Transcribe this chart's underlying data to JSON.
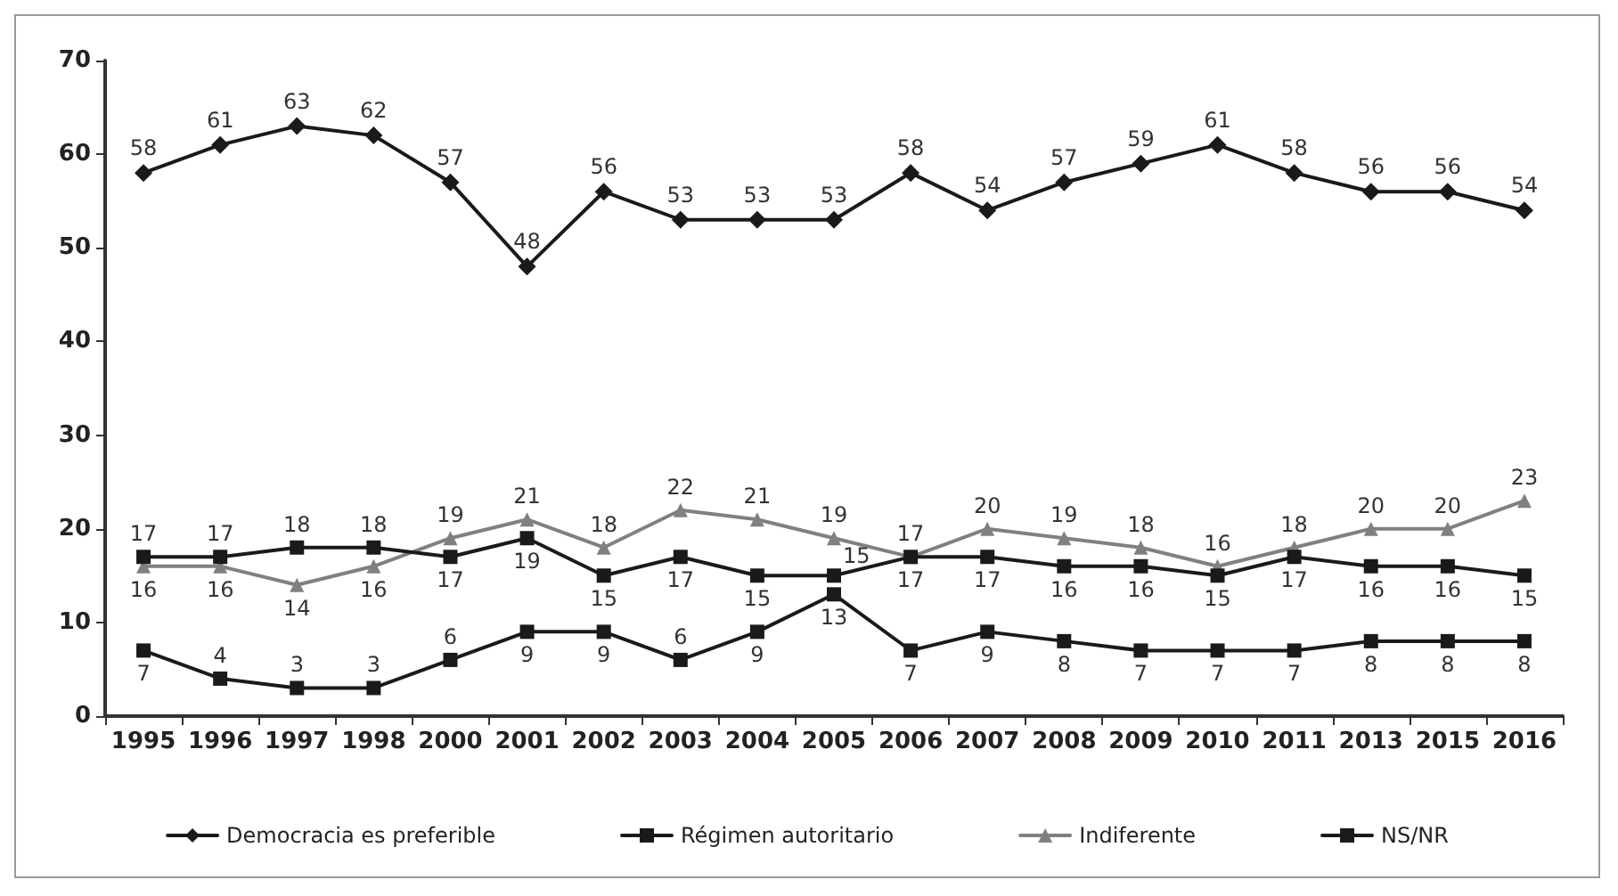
{
  "chart_data": {
    "type": "line",
    "categories": [
      "1995",
      "1996",
      "1997",
      "1998",
      "2000",
      "2001",
      "2002",
      "2003",
      "2004",
      "2005",
      "2006",
      "2007",
      "2008",
      "2009",
      "2010",
      "2011",
      "2013",
      "2015",
      "2016"
    ],
    "series": [
      {
        "name": "Democracia es preferible",
        "color": "#1a1a1a",
        "marker": "diamond",
        "values": [
          58,
          61,
          63,
          62,
          57,
          48,
          56,
          53,
          53,
          53,
          58,
          54,
          57,
          59,
          61,
          58,
          56,
          56,
          54
        ]
      },
      {
        "name": "Régimen autoritario",
        "color": "#1a1a1a",
        "marker": "square",
        "values": [
          17,
          17,
          18,
          18,
          17,
          19,
          15,
          17,
          15,
          15,
          17,
          17,
          16,
          16,
          15,
          17,
          16,
          16,
          15
        ]
      },
      {
        "name": "Indiferente",
        "color": "#808080",
        "marker": "triangle",
        "values": [
          16,
          16,
          14,
          16,
          19,
          21,
          18,
          22,
          21,
          19,
          17,
          20,
          19,
          18,
          16,
          18,
          20,
          20,
          23
        ]
      },
      {
        "name": "NS/NR",
        "color": "#1a1a1a",
        "marker": "square",
        "values": [
          7,
          4,
          3,
          3,
          6,
          9,
          9,
          6,
          9,
          13,
          7,
          9,
          8,
          7,
          7,
          7,
          8,
          8,
          8
        ]
      }
    ],
    "ylim": [
      0,
      70
    ],
    "yticks": [
      0,
      10,
      20,
      30,
      40,
      50,
      60,
      70
    ],
    "grid": false,
    "legend": "bottom",
    "data_labels": true,
    "line_style": "solid"
  }
}
